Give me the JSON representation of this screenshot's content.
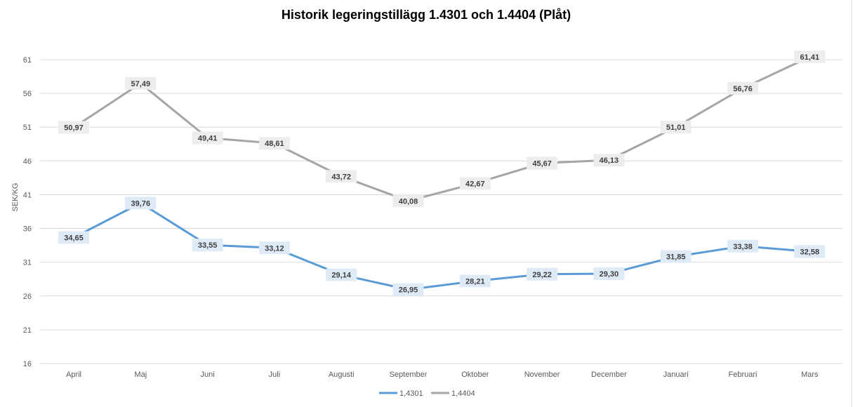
{
  "chart_data": {
    "type": "line",
    "title": "Historik legeringstillägg 1.4301 och 1.4404 (Plåt)",
    "ylabel": "SEK/KG",
    "xlabel": "",
    "categories": [
      "April",
      "Maj",
      "Juni",
      "Juli",
      "Augusti",
      "September",
      "Oktober",
      "November",
      "December",
      "Januari",
      "Februari",
      "Mars"
    ],
    "ylim": [
      16,
      61
    ],
    "yticks": [
      16,
      21,
      26,
      31,
      36,
      41,
      46,
      51,
      56,
      61
    ],
    "grid": true,
    "legend_position": "bottom",
    "series": [
      {
        "name": "1,4301",
        "color": "#5B9BD5",
        "label_bg": "#DEEBF7",
        "values": [
          34.65,
          39.76,
          33.55,
          33.12,
          29.14,
          26.95,
          28.21,
          29.22,
          29.3,
          31.85,
          33.38,
          32.58
        ],
        "labels": [
          "34,65",
          "39,76",
          "33,55",
          "33,12",
          "29,14",
          "26,95",
          "28,21",
          "29,22",
          "29,30",
          "31,85",
          "33,38",
          "32,58"
        ]
      },
      {
        "name": "1,4404",
        "color": "#A5A5A5",
        "label_bg": "#EDEDED",
        "values": [
          50.97,
          57.49,
          49.41,
          48.61,
          43.72,
          40.08,
          42.67,
          45.67,
          46.13,
          51.01,
          56.76,
          61.41
        ],
        "labels": [
          "50,97",
          "57,49",
          "49,41",
          "48,61",
          "43,72",
          "40,08",
          "42,67",
          "45,67",
          "46,13",
          "51,01",
          "56,76",
          "61,41"
        ]
      }
    ]
  }
}
